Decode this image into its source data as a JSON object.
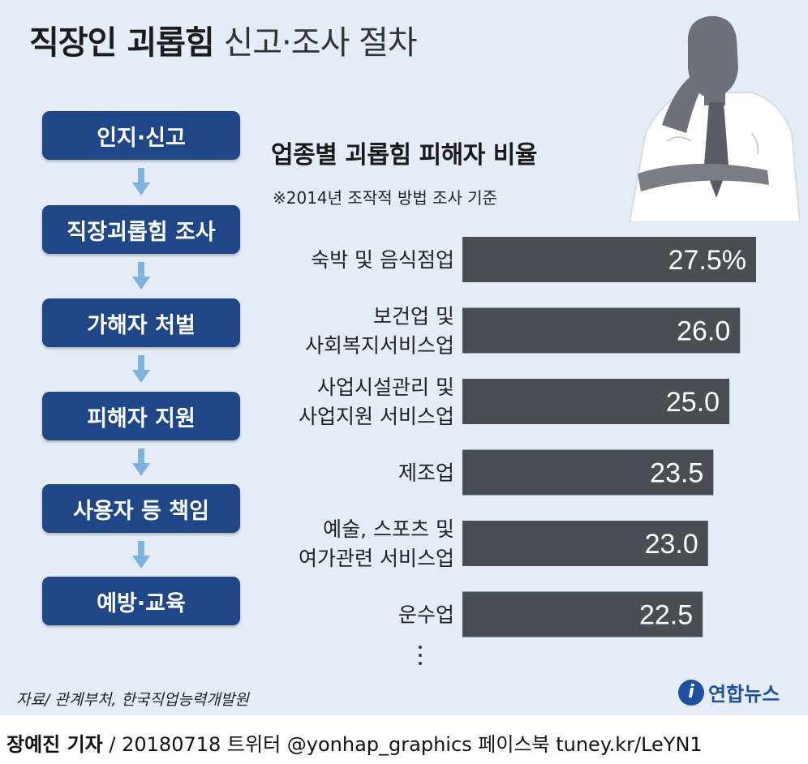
{
  "title": {
    "bold": "직장인 괴롭힘",
    "light": "신고·조사 절차"
  },
  "procedure_steps": [
    "인지·신고",
    "직장괴롭힘 조사",
    "가해자 처벌",
    "피해자 지원",
    "사용자 등 책임",
    "예방·교육"
  ],
  "chart_data": {
    "type": "bar",
    "orientation": "horizontal",
    "title": "업종별 괴롭힘 피해자 비율",
    "subtitle": "※2014년 조작적 방법 조사 기준",
    "categories": [
      [
        "숙박 및 음식점업"
      ],
      [
        "보건업 및",
        "사회복지서비스업"
      ],
      [
        "사업시설관리 및",
        "사업지원 서비스업"
      ],
      [
        "제조업"
      ],
      [
        "예술, 스포츠 및",
        "여가관련 서비스업"
      ],
      [
        "운수업"
      ]
    ],
    "values": [
      27.5,
      26.0,
      25.0,
      23.5,
      23.0,
      22.5
    ],
    "value_labels": [
      "27.5%",
      "26.0",
      "25.0",
      "23.5",
      "23.0",
      "22.5"
    ],
    "unit": "%",
    "xlim": [
      0,
      27.5
    ],
    "grid": false,
    "bar_color": "#4a4d52",
    "label_color": "#ffffff",
    "continues": true
  },
  "source": "자료/ 관계부처, 한국직업능력개발원",
  "logo": {
    "mark": "i",
    "text": "연합뉴스"
  },
  "credit": {
    "name": "장예진 기자",
    "rest": "/ 20180718 트위터 @yonhap_graphics  페이스북 tuney.kr/LeYN1"
  },
  "colors": {
    "background": "#e6ecf5",
    "step_box": "#1f4788",
    "arrow": "#7fb3df",
    "brand": "#1f4fa0"
  },
  "icons": {
    "arrow": "down-arrow-icon",
    "illustration": "businessman-silhouette"
  }
}
